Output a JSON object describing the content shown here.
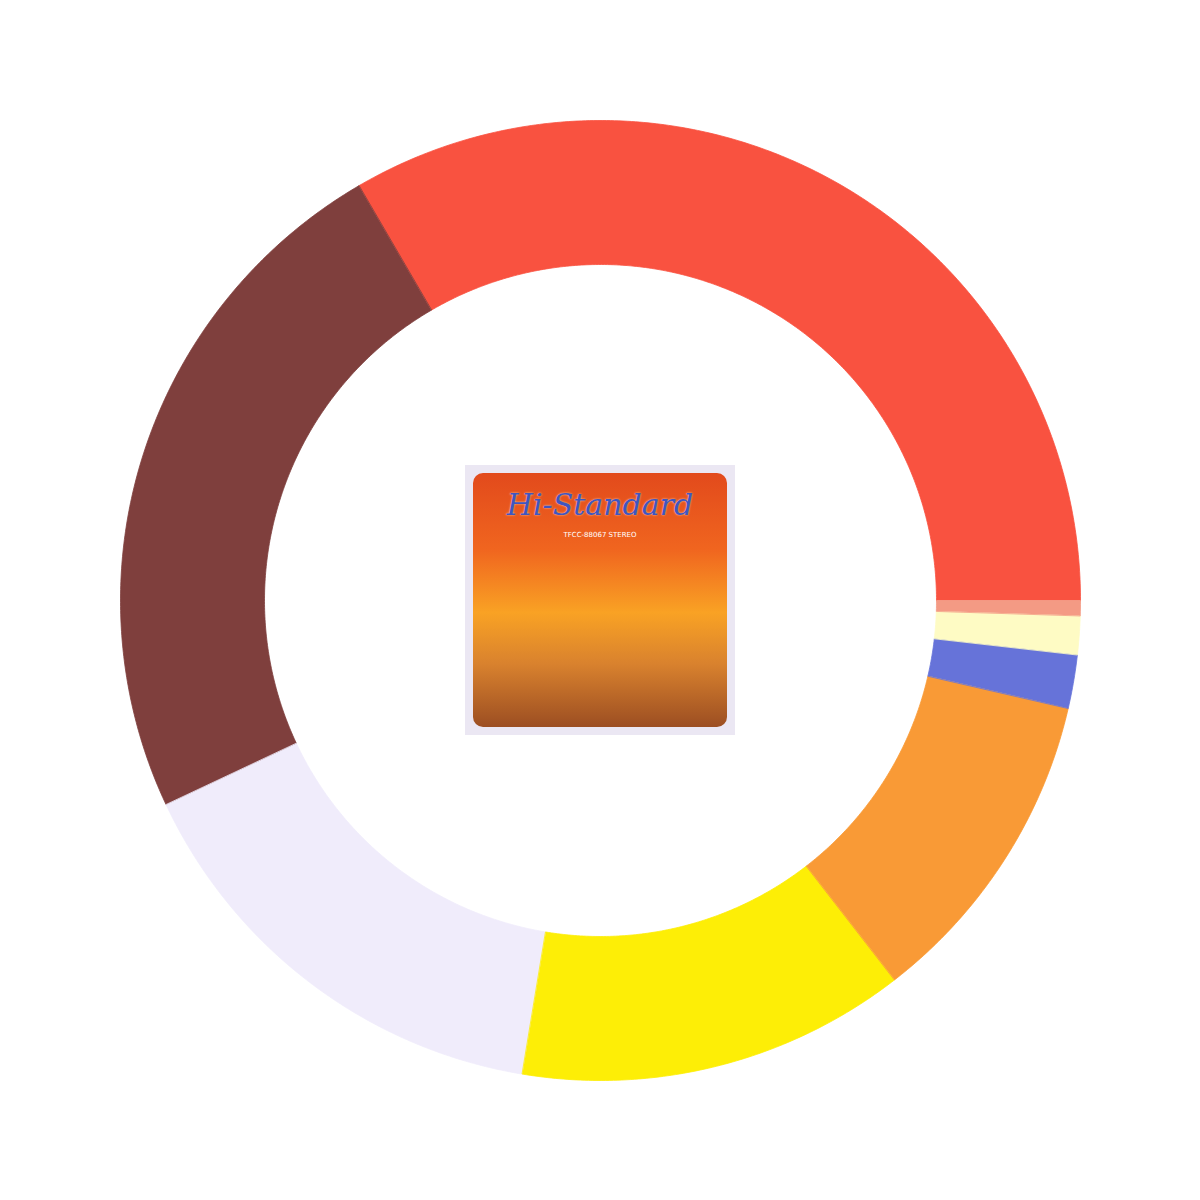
{
  "chart_data": {
    "type": "donut",
    "values": [
      33.4,
      23.6,
      15.4,
      13.1,
      10.9,
      1.8,
      1.3,
      0.5
    ],
    "colors": [
      "#f95240",
      "#7f3f3d",
      "#f0ecfb",
      "#fdee06",
      "#f99a36",
      "#6673d9",
      "#fefbc4",
      "#f49a84"
    ],
    "annotations": [
      "Hi-Standard",
      "TFCC-88067 STEREO"
    ]
  }
}
